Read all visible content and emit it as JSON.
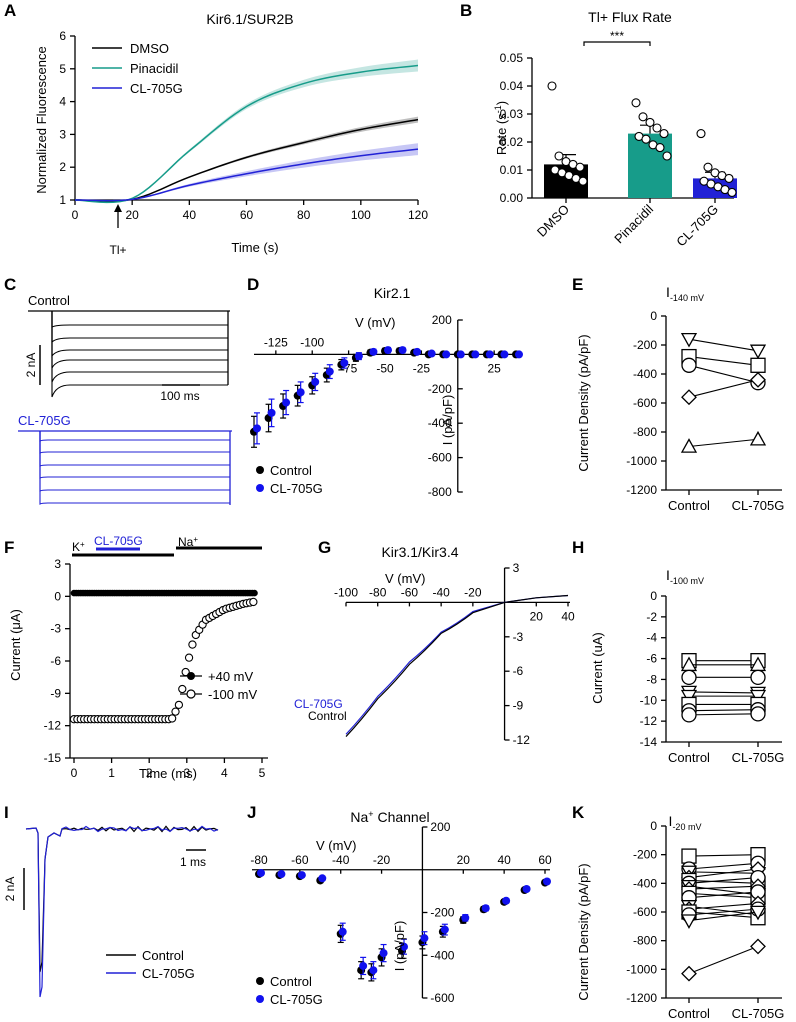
{
  "colors": {
    "black": "#000000",
    "teal": "#179c8a",
    "blue": "#2121d6",
    "bright_blue": "#1111ee"
  },
  "panels": {
    "A": {
      "letter": "A",
      "title": "Kir6.1/SUR2B",
      "xlabel": "Time (s)",
      "ylabel": "Normalized Fluorescence",
      "arrow_label": "Tl+",
      "xticks": [
        "0",
        "20",
        "40",
        "60",
        "80",
        "100",
        "120"
      ],
      "yticks": [
        "1",
        "2",
        "3",
        "4",
        "5",
        "6"
      ],
      "legend": [
        "DMSO",
        "Pinacidil",
        "CL-705G"
      ]
    },
    "B": {
      "letter": "B",
      "title": "Tl+ Flux Rate",
      "ylabel_main": "Rate (s",
      "ylabel_sup": "-1",
      "ylabel_end": ")",
      "sig": "***",
      "yticks": [
        "0.00",
        "0.01",
        "0.02",
        "0.03",
        "0.04",
        "0.05"
      ],
      "categories": [
        "DMSO",
        "Pinacidil",
        "CL-705G"
      ]
    },
    "C": {
      "letter": "C",
      "control_label": "Control",
      "drug_label": "CL-705G",
      "scale_y": "2 nA",
      "scale_x": "100 ms"
    },
    "D": {
      "letter": "D",
      "title": "Kir2.1",
      "xlabel": "V (mV)",
      "ylabel": "I (pA/pF)",
      "xticks": [
        "-125",
        "-100",
        "-75",
        "-50",
        "-25",
        "25"
      ],
      "yticks": [
        "200",
        "-200",
        "-400",
        "-600",
        "-800"
      ],
      "legend": [
        "Control",
        "CL-705G"
      ]
    },
    "E": {
      "letter": "E",
      "title_main": "I",
      "title_sub": "-140 mV",
      "ylabel": "Current Density (pA/pF)",
      "yticks": [
        "0",
        "-200",
        "-400",
        "-600",
        "-800",
        "-1000",
        "-1200"
      ],
      "categories": [
        "Control",
        "CL-705G"
      ]
    },
    "F": {
      "letter": "F",
      "ylabel": "Current (μA)",
      "xlabel": "Time (ms)",
      "xticks": [
        "0",
        "1",
        "2",
        "3",
        "4",
        "5"
      ],
      "yticks": [
        "3",
        "0",
        "-3",
        "-6",
        "-9",
        "-12",
        "-15"
      ],
      "k_label": "K",
      "k_sup": "+",
      "drug_label": "CL-705G",
      "na_label": "Na",
      "na_sup": "+",
      "legend": [
        "+40 mV",
        "-100 mV"
      ]
    },
    "G": {
      "letter": "G",
      "title": "Kir3.1/Kir3.4",
      "xlabel": "V (mV)",
      "xticks_neg": [
        "-100",
        "-80",
        "-60",
        "-40",
        "-20"
      ],
      "xticks_pos": [
        "20",
        "40"
      ],
      "yticks": [
        "3",
        "-3",
        "-6",
        "-9",
        "-12"
      ],
      "trace_labels": [
        "CL-705G",
        "Control"
      ]
    },
    "H": {
      "letter": "H",
      "title_main": "I",
      "title_sub": "-100 mV",
      "ylabel": "Current (uA)",
      "yticks": [
        "0",
        "-2",
        "-4",
        "-6",
        "-8",
        "-10",
        "-12",
        "-14"
      ],
      "categories": [
        "Control",
        "CL-705G"
      ]
    },
    "I": {
      "letter": "I",
      "scale_y": "2 nA",
      "scale_x": "1 ms",
      "legend": [
        "Control",
        "CL-705G"
      ]
    },
    "J": {
      "letter": "J",
      "title_main": "Na",
      "title_sup": "+",
      "title_end": " Channel",
      "xlabel": "V (mV)",
      "ylabel": "I (pA/pF)",
      "xticks_neg": [
        "-80",
        "-60",
        "-40",
        "-20"
      ],
      "xticks_pos": [
        "20",
        "40",
        "60"
      ],
      "yticks": [
        "200",
        "-200",
        "-400",
        "-600"
      ],
      "legend": [
        "Control",
        "CL-705G"
      ]
    },
    "K": {
      "letter": "K",
      "title_main": "I",
      "title_sub": "-20 mV",
      "ylabel": "Current Density (pA/pF)",
      "yticks": [
        "0",
        "-200",
        "-400",
        "-600",
        "-800",
        "-1000",
        "-1200"
      ],
      "categories": [
        "Control",
        "CL-705G"
      ]
    }
  },
  "chart_data": [
    {
      "panel": "A",
      "type": "line",
      "x": [
        0,
        20,
        40,
        60,
        80,
        100,
        120
      ],
      "xlim": [
        0,
        120
      ],
      "ylim": [
        1,
        6
      ],
      "series": [
        {
          "name": "DMSO",
          "values": [
            1.0,
            1.02,
            1.7,
            2.3,
            2.75,
            3.15,
            3.45
          ]
        },
        {
          "name": "Pinacidil",
          "values": [
            1.0,
            1.05,
            2.5,
            3.85,
            4.55,
            4.9,
            5.1
          ]
        },
        {
          "name": "CL-705G",
          "values": [
            1.0,
            1.02,
            1.45,
            1.8,
            2.1,
            2.35,
            2.55
          ]
        }
      ]
    },
    {
      "panel": "B",
      "type": "bar",
      "categories": [
        "DMSO",
        "Pinacidil",
        "CL-705G"
      ],
      "ylim": [
        0,
        0.05
      ],
      "values": [
        0.012,
        0.023,
        0.007
      ],
      "errors": [
        0.0035,
        0.003,
        0.0022
      ],
      "points": [
        [
          0.04,
          0.015,
          0.013,
          0.012,
          0.011,
          0.01,
          0.009,
          0.008,
          0.007,
          0.006
        ],
        [
          0.034,
          0.029,
          0.027,
          0.025,
          0.023,
          0.022,
          0.021,
          0.019,
          0.018,
          0.015
        ],
        [
          0.023,
          0.011,
          0.009,
          0.008,
          0.007,
          0.006,
          0.005,
          0.004,
          0.003,
          0.002
        ]
      ]
    },
    {
      "panel": "D",
      "type": "scatter",
      "xlim": [
        -140,
        40
      ],
      "ylim": [
        -800,
        200
      ],
      "series": [
        {
          "name": "Control",
          "x": [
            -140,
            -130,
            -120,
            -110,
            -100,
            -90,
            -80,
            -70,
            -60,
            -50,
            -40,
            -30,
            -20,
            -10,
            0,
            10,
            20,
            30,
            40
          ],
          "y": [
            -450,
            -370,
            -300,
            -240,
            -180,
            -120,
            -60,
            -20,
            10,
            20,
            20,
            10,
            0,
            0,
            0,
            0,
            0,
            0,
            0
          ],
          "err": [
            90,
            80,
            70,
            60,
            50,
            40,
            30,
            20,
            15,
            15,
            15,
            10,
            5,
            5,
            5,
            5,
            5,
            5,
            5
          ]
        },
        {
          "name": "CL-705G",
          "x": [
            -140,
            -130,
            -120,
            -110,
            -100,
            -90,
            -80,
            -70,
            -60,
            -50,
            -40,
            -30,
            -20,
            -10,
            0,
            10,
            20,
            30,
            40
          ],
          "y": [
            -430,
            -340,
            -280,
            -220,
            -160,
            -100,
            -50,
            -10,
            15,
            25,
            25,
            15,
            5,
            0,
            0,
            0,
            0,
            0,
            0
          ],
          "err": [
            90,
            80,
            70,
            60,
            50,
            40,
            30,
            20,
            15,
            15,
            15,
            10,
            5,
            5,
            5,
            5,
            5,
            5,
            5
          ]
        }
      ]
    },
    {
      "panel": "E",
      "type": "scatter",
      "categories": [
        "Control",
        "CL-705G"
      ],
      "ylim": [
        -1200,
        0
      ],
      "pairs": [
        [
          -160,
          -240
        ],
        [
          -280,
          -340
        ],
        [
          -340,
          -460
        ],
        [
          -560,
          -440
        ],
        [
          -900,
          -850
        ]
      ],
      "markers": [
        "triangle-down",
        "square",
        "circle",
        "diamond",
        "triangle-up"
      ]
    },
    {
      "panel": "F",
      "type": "scatter",
      "xlim": [
        0,
        5
      ],
      "ylim": [
        -15,
        3
      ],
      "series": [
        {
          "name": "+40 mV",
          "x": [
            0,
            1,
            2,
            3,
            4,
            4.8
          ],
          "y": [
            0.3,
            0.3,
            0.3,
            0.3,
            0.3,
            0.3
          ]
        },
        {
          "name": "-100 mV",
          "x": [
            0,
            1,
            2,
            2.6,
            2.8,
            3.0,
            3.2,
            3.5,
            4.0,
            4.5,
            4.8
          ],
          "y": [
            -11.4,
            -11.4,
            -11.4,
            -11.4,
            -10.0,
            -6.5,
            -3.8,
            -2.2,
            -1.2,
            -0.7,
            -0.5
          ]
        }
      ]
    },
    {
      "panel": "G",
      "type": "line",
      "xlim": [
        -100,
        40
      ],
      "ylim": [
        -12,
        3
      ],
      "series": [
        {
          "name": "CL-705G",
          "x": [
            -100,
            -80,
            -60,
            -40,
            -20,
            0,
            20,
            40
          ],
          "y": [
            -11.5,
            -8.2,
            -5.2,
            -2.6,
            -0.8,
            0.0,
            0.4,
            0.6
          ]
        },
        {
          "name": "Control",
          "x": [
            -100,
            -80,
            -60,
            -40,
            -20,
            0,
            20,
            40
          ],
          "y": [
            -11.7,
            -8.4,
            -5.4,
            -2.7,
            -0.9,
            0.0,
            0.4,
            0.6
          ]
        }
      ]
    },
    {
      "panel": "H",
      "type": "scatter",
      "categories": [
        "Control",
        "CL-705G"
      ],
      "ylim": [
        -14,
        0
      ],
      "pairs": [
        [
          -6.2,
          -6.2
        ],
        [
          -6.6,
          -6.6
        ],
        [
          -7.8,
          -7.8
        ],
        [
          -9.2,
          -9.3
        ],
        [
          -9.6,
          -9.6
        ],
        [
          -10.4,
          -10.4
        ],
        [
          -11.0,
          -10.9
        ],
        [
          -11.4,
          -11.3
        ]
      ],
      "markers": [
        "square",
        "triangle-up",
        "circle",
        "triangle-down",
        "triangle-down",
        "square",
        "circle",
        "circle"
      ]
    },
    {
      "panel": "J",
      "type": "scatter",
      "xlim": [
        -80,
        60
      ],
      "ylim": [
        -600,
        200
      ],
      "series": [
        {
          "name": "Control",
          "x": [
            -80,
            -70,
            -60,
            -50,
            -40,
            -30,
            -25,
            -20,
            -10,
            0,
            10,
            20,
            30,
            40,
            50,
            60
          ],
          "y": [
            -20,
            -25,
            -30,
            -50,
            -300,
            -470,
            -480,
            -410,
            -380,
            -340,
            -290,
            -235,
            -185,
            -150,
            -95,
            -60
          ],
          "err": [
            8,
            8,
            8,
            10,
            40,
            40,
            40,
            40,
            35,
            30,
            25,
            15,
            12,
            10,
            10,
            10
          ]
        },
        {
          "name": "CL-705G",
          "x": [
            -80,
            -70,
            -60,
            -50,
            -40,
            -30,
            -25,
            -20,
            -10,
            0,
            10,
            20,
            30,
            40,
            50,
            60
          ],
          "y": [
            -15,
            -20,
            -25,
            -40,
            -290,
            -450,
            -470,
            -390,
            -360,
            -320,
            -280,
            -225,
            -180,
            -145,
            -90,
            -55
          ],
          "err": [
            8,
            8,
            8,
            10,
            40,
            40,
            40,
            40,
            35,
            30,
            25,
            15,
            12,
            10,
            10,
            10
          ]
        }
      ]
    },
    {
      "panel": "K",
      "type": "scatter",
      "categories": [
        "Control",
        "CL-705G"
      ],
      "ylim": [
        -1200,
        0
      ],
      "pairs": [
        [
          -210,
          -200
        ],
        [
          -300,
          -260
        ],
        [
          -320,
          -330
        ],
        [
          -360,
          -300
        ],
        [
          -380,
          -400
        ],
        [
          -400,
          -360
        ],
        [
          -420,
          -480
        ],
        [
          -440,
          -420
        ],
        [
          -470,
          -500
        ],
        [
          -500,
          -460
        ],
        [
          -560,
          -620
        ],
        [
          -580,
          -540
        ],
        [
          -600,
          -640
        ],
        [
          -620,
          -580
        ],
        [
          -660,
          -600
        ],
        [
          -1030,
          -840
        ]
      ]
    }
  ]
}
